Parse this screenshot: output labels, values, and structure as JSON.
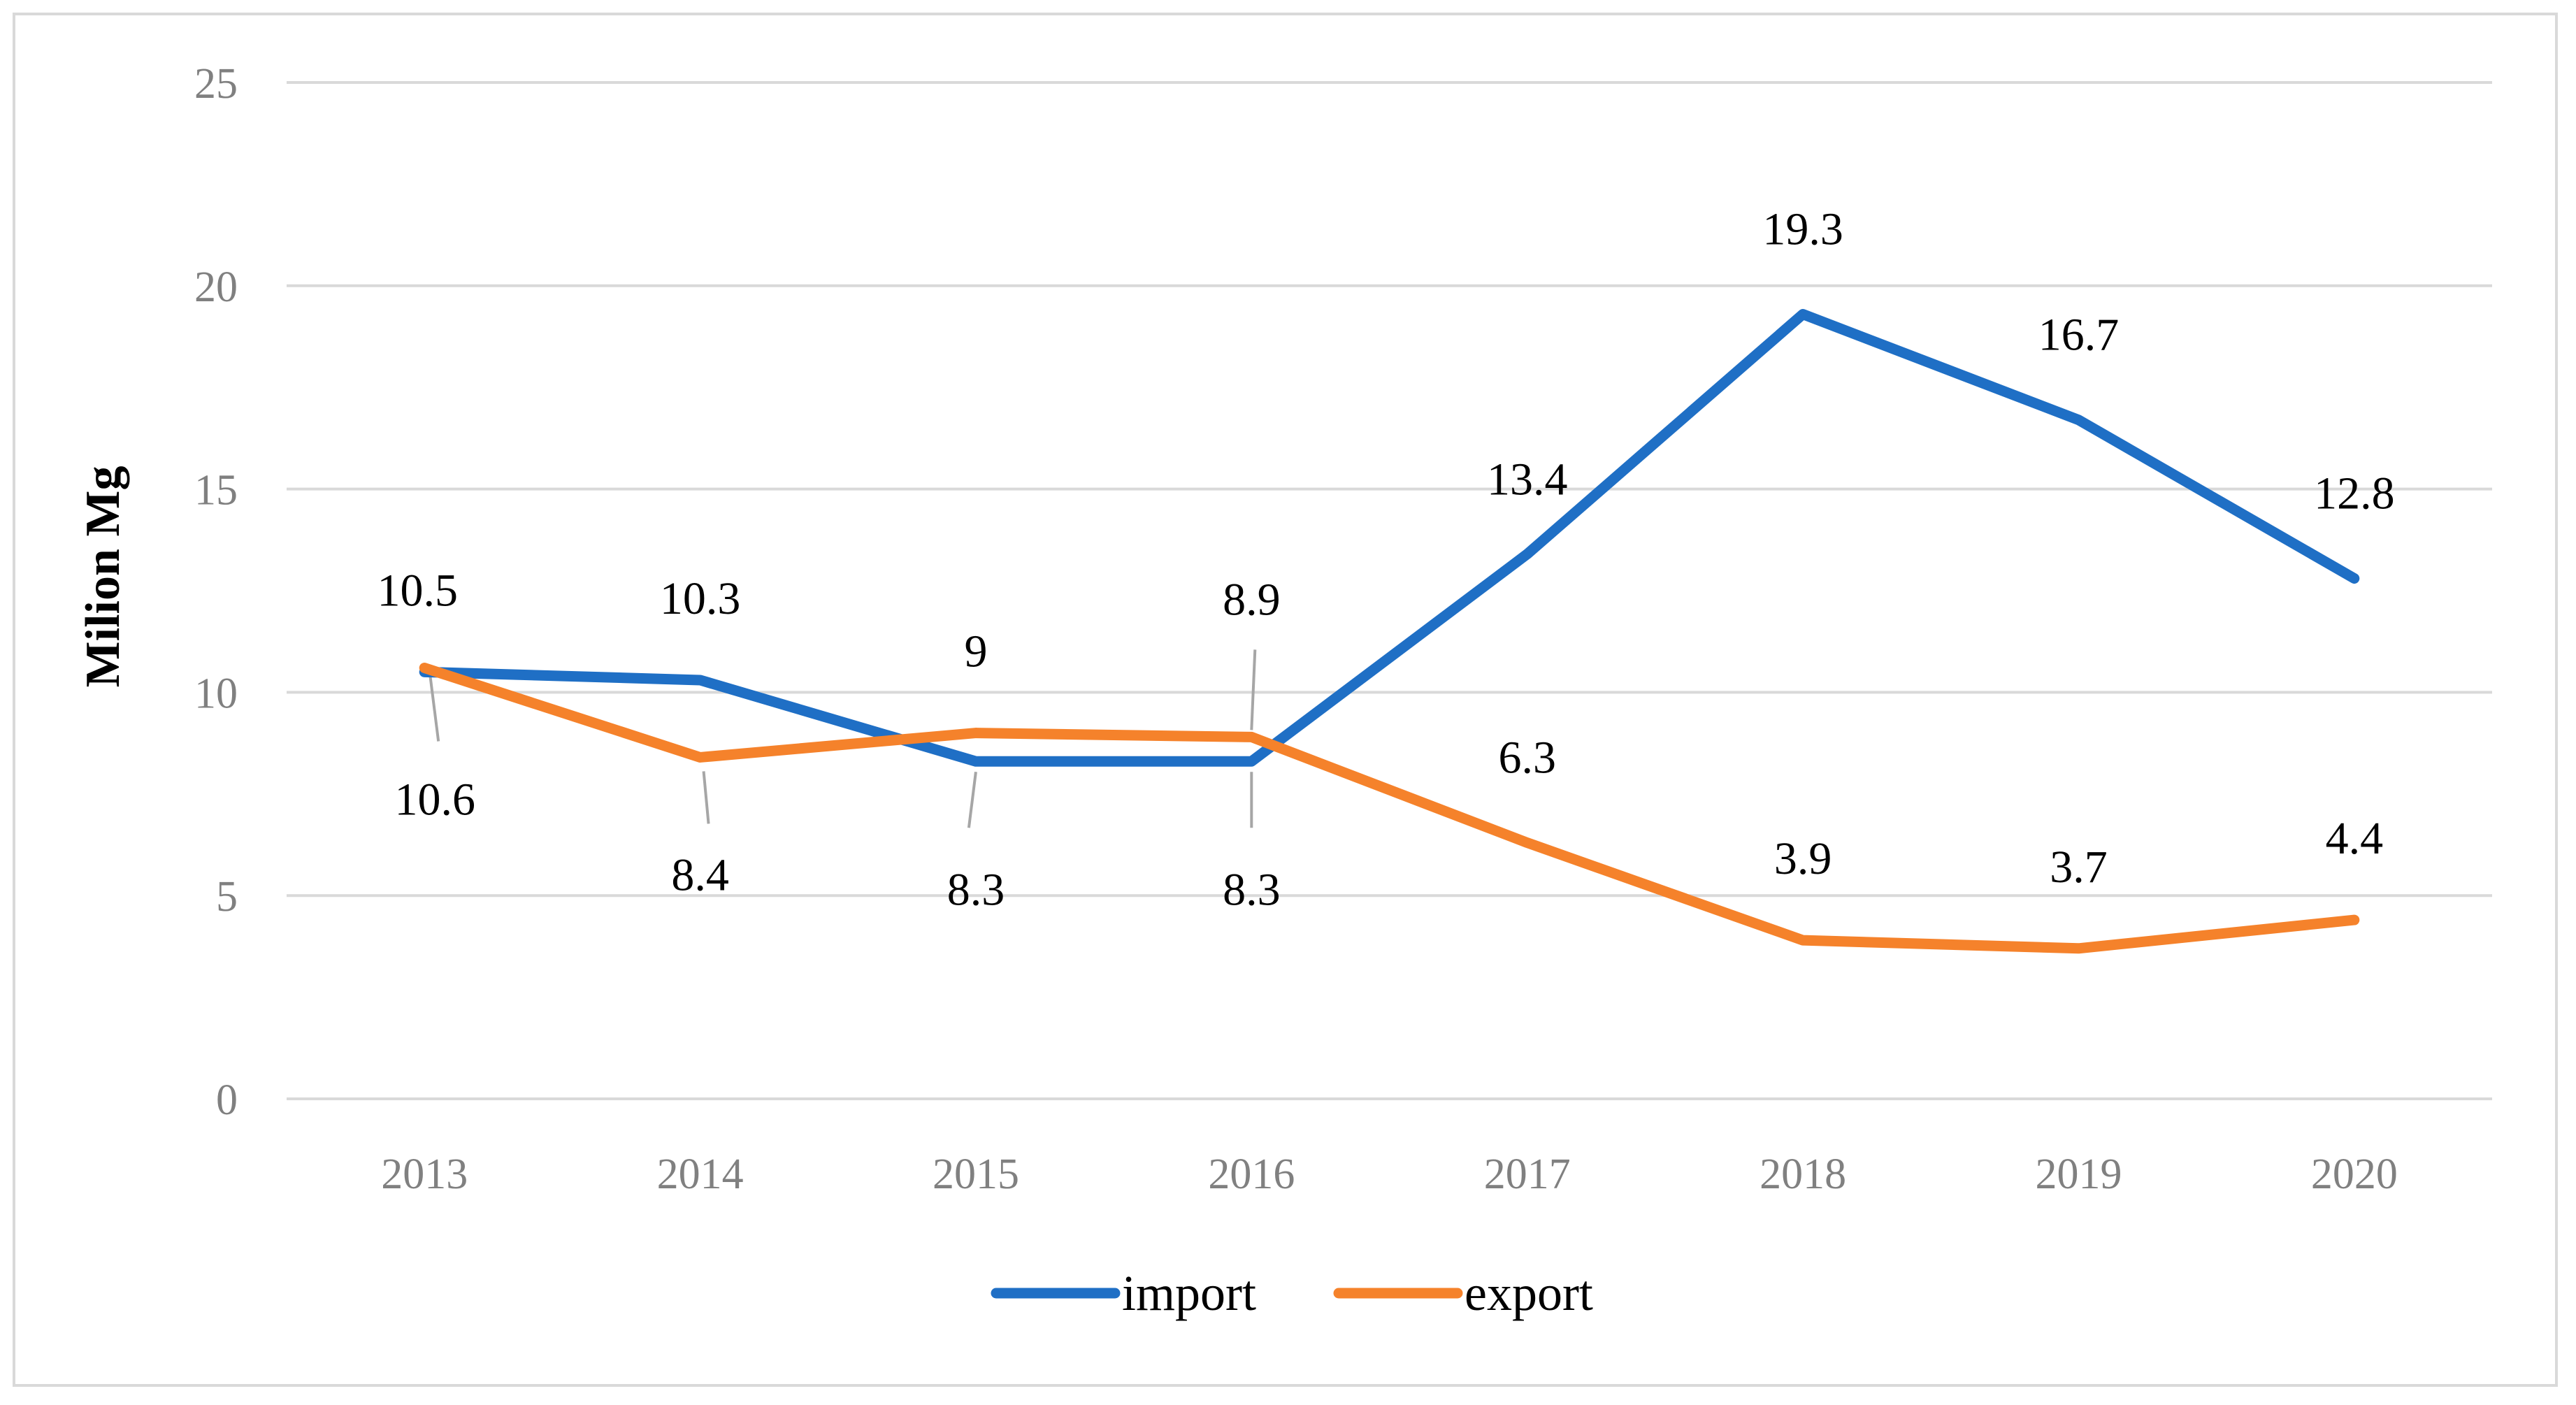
{
  "chart_data": {
    "type": "line",
    "ylabel": "Milion Mg",
    "xlabel": "",
    "ylim": [
      0,
      25
    ],
    "yticks": [
      0,
      5,
      10,
      15,
      20,
      25
    ],
    "grid": true,
    "legend": "bottom-center",
    "categories": [
      "2013",
      "2014",
      "2015",
      "2016",
      "2017",
      "2018",
      "2019",
      "2020"
    ],
    "series": [
      {
        "name": "import",
        "color": "#1f6fc5",
        "values": [
          10.5,
          10.3,
          8.3,
          8.3,
          13.4,
          19.3,
          16.7,
          12.8
        ],
        "labels": [
          "10.5",
          "10.3",
          "8.3",
          "8.3",
          "13.4",
          "19.3",
          "16.7",
          "12.8"
        ]
      },
      {
        "name": "export",
        "color": "#f5822b",
        "values": [
          10.6,
          8.4,
          9.0,
          8.9,
          6.3,
          3.9,
          3.7,
          4.4
        ],
        "labels": [
          "10.6",
          "8.4",
          "9",
          "8.9",
          "6.3",
          "3.9",
          "3.7",
          "4.4"
        ]
      }
    ]
  }
}
